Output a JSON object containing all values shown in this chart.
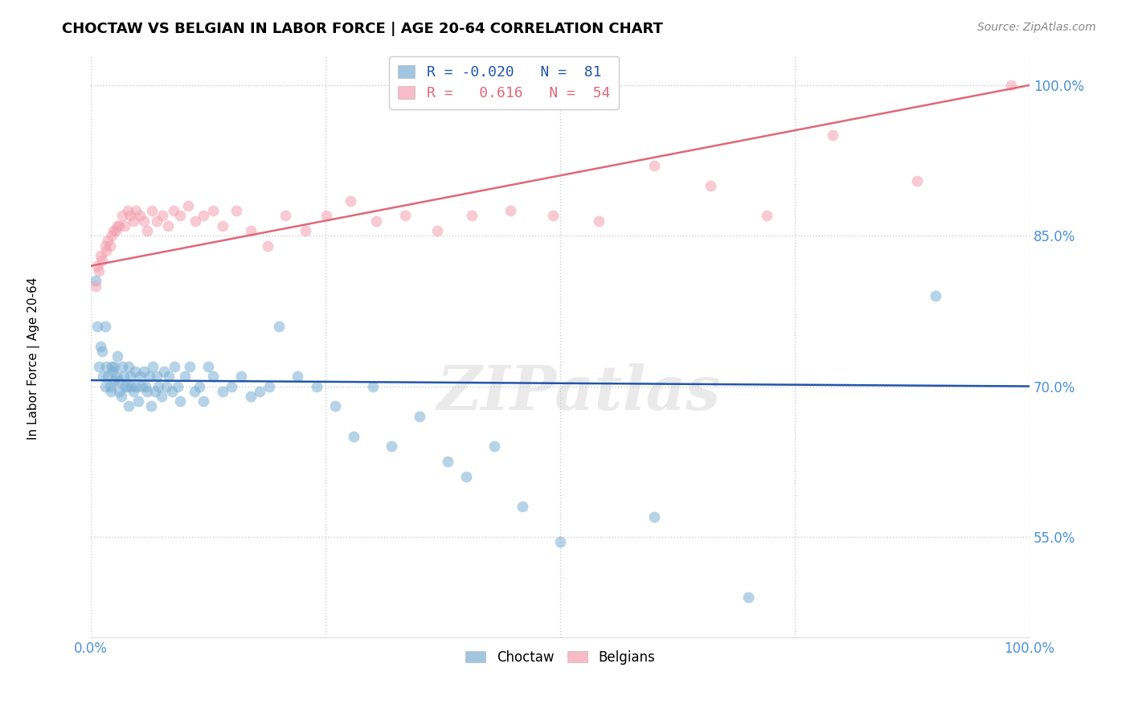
{
  "title": "CHOCTAW VS BELGIAN IN LABOR FORCE | AGE 20-64 CORRELATION CHART",
  "source": "Source: ZipAtlas.com",
  "ylabel": "In Labor Force | Age 20-64",
  "xlim": [
    0.0,
    1.0
  ],
  "ylim": [
    0.45,
    1.03
  ],
  "ytick_values": [
    0.55,
    0.7,
    0.85,
    1.0
  ],
  "ytick_labels": [
    "55.0%",
    "70.0%",
    "85.0%",
    "100.0%"
  ],
  "xtick_vals": [
    0.0,
    0.25,
    0.5,
    0.75,
    1.0
  ],
  "xtick_labels": [
    "0.0%",
    "",
    "",
    "",
    "100.0%"
  ],
  "grid_color": "#cccccc",
  "choctaw_color": "#7bafd4",
  "belgian_color": "#f4a0b0",
  "choctaw_line_color": "#2255aa",
  "belgian_line_color": "#e06878",
  "legend_choctaw_R": "-0.020",
  "legend_choctaw_N": "81",
  "legend_belgian_R": "0.616",
  "legend_belgian_N": "54",
  "watermark": "ZIPatlas",
  "choctaw_line_y0": 0.706,
  "choctaw_line_y1": 0.7,
  "belgian_line_y0": 0.82,
  "belgian_line_y1": 1.0,
  "choctaw_x": [
    0.005,
    0.007,
    0.008,
    0.01,
    0.012,
    0.013,
    0.015,
    0.015,
    0.016,
    0.018,
    0.02,
    0.021,
    0.022,
    0.023,
    0.025,
    0.025,
    0.027,
    0.028,
    0.03,
    0.03,
    0.032,
    0.033,
    0.035,
    0.036,
    0.038,
    0.04,
    0.04,
    0.042,
    0.043,
    0.045,
    0.047,
    0.048,
    0.05,
    0.052,
    0.054,
    0.056,
    0.058,
    0.06,
    0.062,
    0.064,
    0.066,
    0.068,
    0.07,
    0.072,
    0.075,
    0.078,
    0.08,
    0.083,
    0.086,
    0.089,
    0.092,
    0.095,
    0.1,
    0.105,
    0.11,
    0.115,
    0.12,
    0.125,
    0.13,
    0.14,
    0.15,
    0.16,
    0.17,
    0.18,
    0.19,
    0.2,
    0.22,
    0.24,
    0.26,
    0.28,
    0.3,
    0.32,
    0.35,
    0.38,
    0.4,
    0.43,
    0.46,
    0.5,
    0.6,
    0.7,
    0.9
  ],
  "choctaw_y": [
    0.805,
    0.76,
    0.72,
    0.74,
    0.735,
    0.71,
    0.76,
    0.7,
    0.72,
    0.71,
    0.7,
    0.695,
    0.72,
    0.715,
    0.705,
    0.72,
    0.71,
    0.73,
    0.705,
    0.695,
    0.69,
    0.72,
    0.71,
    0.7,
    0.7,
    0.72,
    0.68,
    0.71,
    0.7,
    0.695,
    0.715,
    0.7,
    0.685,
    0.71,
    0.7,
    0.715,
    0.7,
    0.695,
    0.71,
    0.68,
    0.72,
    0.695,
    0.71,
    0.7,
    0.69,
    0.715,
    0.7,
    0.71,
    0.695,
    0.72,
    0.7,
    0.685,
    0.71,
    0.72,
    0.695,
    0.7,
    0.685,
    0.72,
    0.71,
    0.695,
    0.7,
    0.71,
    0.69,
    0.695,
    0.7,
    0.76,
    0.71,
    0.7,
    0.68,
    0.65,
    0.7,
    0.64,
    0.67,
    0.625,
    0.61,
    0.64,
    0.58,
    0.545,
    0.57,
    0.49,
    0.79
  ],
  "belgian_x": [
    0.005,
    0.007,
    0.008,
    0.01,
    0.012,
    0.015,
    0.016,
    0.018,
    0.02,
    0.022,
    0.024,
    0.026,
    0.028,
    0.03,
    0.033,
    0.036,
    0.039,
    0.042,
    0.045,
    0.048,
    0.052,
    0.056,
    0.06,
    0.065,
    0.07,
    0.076,
    0.082,
    0.088,
    0.095,
    0.103,
    0.111,
    0.12,
    0.13,
    0.14,
    0.155,
    0.17,
    0.188,
    0.207,
    0.228,
    0.251,
    0.276,
    0.304,
    0.335,
    0.369,
    0.406,
    0.447,
    0.492,
    0.541,
    0.6,
    0.66,
    0.72,
    0.79,
    0.88,
    0.98
  ],
  "belgian_y": [
    0.8,
    0.82,
    0.815,
    0.83,
    0.825,
    0.84,
    0.835,
    0.845,
    0.84,
    0.85,
    0.855,
    0.855,
    0.86,
    0.86,
    0.87,
    0.86,
    0.875,
    0.87,
    0.865,
    0.875,
    0.87,
    0.865,
    0.855,
    0.875,
    0.865,
    0.87,
    0.86,
    0.875,
    0.87,
    0.88,
    0.865,
    0.87,
    0.875,
    0.86,
    0.875,
    0.855,
    0.84,
    0.87,
    0.855,
    0.87,
    0.885,
    0.865,
    0.87,
    0.855,
    0.87,
    0.875,
    0.87,
    0.865,
    0.92,
    0.9,
    0.87,
    0.95,
    0.905,
    1.0
  ]
}
